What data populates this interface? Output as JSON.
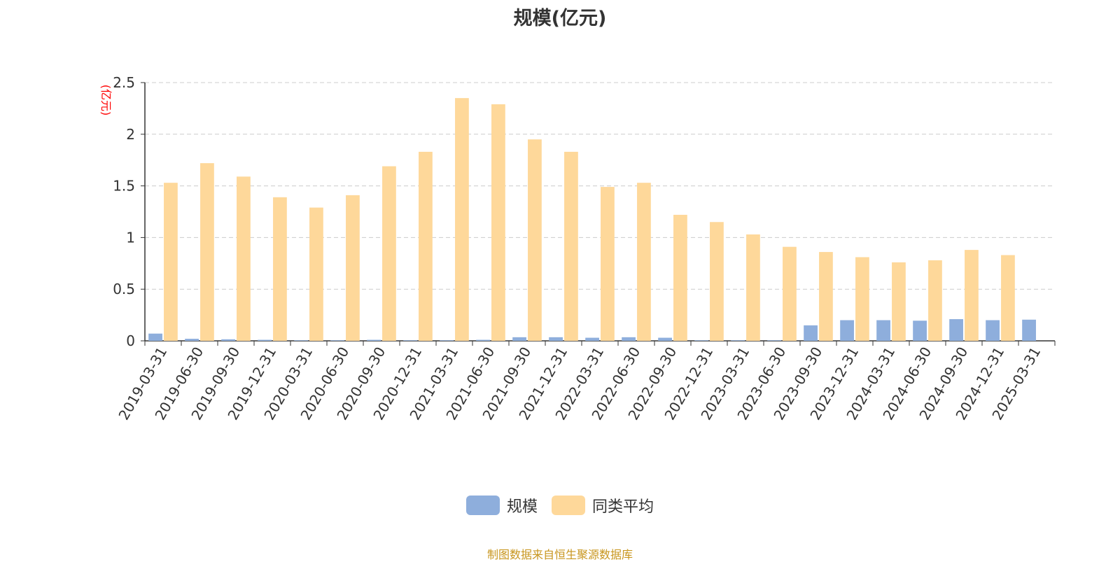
{
  "colors": {
    "series_1": "#8eaedc",
    "series_2": "#fed89a",
    "ylabel": "#ff0000",
    "grid": "#cccccc",
    "axis": "#333333",
    "source": "#c8961e"
  },
  "source_note": "制图数据来自恒生聚源数据库",
  "chart_data": {
    "type": "bar",
    "title": "规模(亿元)",
    "ylabel": "(亿元)",
    "xlabel": "",
    "ylim": [
      0,
      2.5
    ],
    "yticks": [
      0,
      0.5,
      1,
      1.5,
      2,
      2.5
    ],
    "ytick_labels": [
      "0",
      "0.5",
      "1",
      "1.5",
      "2",
      "2.5"
    ],
    "grid": "horizontal dashed",
    "legend_position": "bottom",
    "categories": [
      "2019-03-31",
      "2019-06-30",
      "2019-09-30",
      "2019-12-31",
      "2020-03-31",
      "2020-06-30",
      "2020-09-30",
      "2020-12-31",
      "2021-03-31",
      "2021-06-30",
      "2021-09-30",
      "2021-12-31",
      "2022-03-31",
      "2022-06-30",
      "2022-09-30",
      "2022-12-31",
      "2023-03-31",
      "2023-06-30",
      "2023-09-30",
      "2023-12-31",
      "2024-03-31",
      "2024-06-30",
      "2024-09-30",
      "2024-12-31",
      "2025-03-31"
    ],
    "series": [
      {
        "name": "规模",
        "color": "#8eaedc",
        "values": [
          0.07,
          0.02,
          0.015,
          0.01,
          0.005,
          0.005,
          0.01,
          0.005,
          0.005,
          0.01,
          0.035,
          0.035,
          0.03,
          0.035,
          0.03,
          0.005,
          0.005,
          0.005,
          0.15,
          0.2,
          0.2,
          0.195,
          0.21,
          0.2,
          0.205
        ]
      },
      {
        "name": "同类平均",
        "color": "#fed89a",
        "values": [
          1.53,
          1.72,
          1.59,
          1.39,
          1.29,
          1.41,
          1.69,
          1.83,
          2.35,
          2.29,
          1.95,
          1.83,
          1.49,
          1.53,
          1.22,
          1.15,
          1.03,
          0.91,
          0.86,
          0.81,
          0.76,
          0.78,
          0.88,
          0.83,
          null
        ]
      }
    ]
  }
}
